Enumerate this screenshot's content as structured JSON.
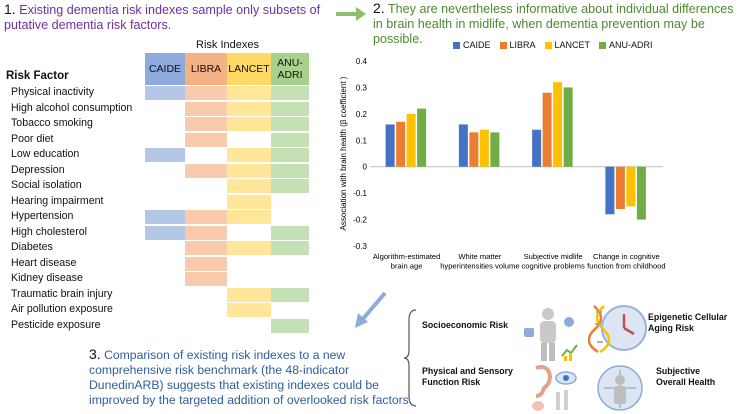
{
  "headings": {
    "h1": {
      "num": "1.",
      "text": "Existing dementia risk indexes sample only subsets of putative dementia risk factors."
    },
    "h2": {
      "num": "2.",
      "text": "They are nevertheless informative about individual differences in brain health in midlife, when dementia prevention may be possible."
    },
    "h3": {
      "num": "3.",
      "text": "Comparison of existing risk indexes to a new comprehensive risk benchmark (the 48-indicator DunedinARB) suggests that existing indexes could be improved by the targeted addition of overlooked risk factors."
    }
  },
  "table": {
    "title": "Risk Indexes",
    "factor_header": "Risk Factor",
    "columns": [
      "CAIDE",
      "LIBRA",
      "LANCET",
      "ANU-ADRI"
    ],
    "column_colors": [
      "#8faadc",
      "#f4b183",
      "#ffd966",
      "#a9d18e"
    ],
    "rows": [
      {
        "label": "Physical inactivity",
        "cells": [
          1,
          1,
          1,
          1
        ]
      },
      {
        "label": "High alcohol consumption",
        "cells": [
          0,
          1,
          1,
          1
        ]
      },
      {
        "label": "Tobacco smoking",
        "cells": [
          0,
          1,
          1,
          1
        ]
      },
      {
        "label": "Poor diet",
        "cells": [
          0,
          1,
          0,
          1
        ]
      },
      {
        "label": "Low education",
        "cells": [
          1,
          0,
          1,
          1
        ]
      },
      {
        "label": "Depression",
        "cells": [
          0,
          1,
          1,
          1
        ]
      },
      {
        "label": "Social isolation",
        "cells": [
          0,
          0,
          1,
          1
        ]
      },
      {
        "label": "Hearing impairment",
        "cells": [
          0,
          0,
          1,
          0
        ]
      },
      {
        "label": "Hypertension",
        "cells": [
          1,
          1,
          1,
          0
        ]
      },
      {
        "label": "High cholesterol",
        "cells": [
          1,
          1,
          0,
          1
        ]
      },
      {
        "label": "Diabetes",
        "cells": [
          0,
          1,
          1,
          1
        ]
      },
      {
        "label": "Heart disease",
        "cells": [
          0,
          1,
          0,
          0
        ]
      },
      {
        "label": "Kidney disease",
        "cells": [
          0,
          1,
          0,
          0
        ]
      },
      {
        "label": "Traumatic brain injury",
        "cells": [
          0,
          0,
          1,
          1
        ]
      },
      {
        "label": "Air pollution exposure",
        "cells": [
          0,
          0,
          1,
          0
        ]
      },
      {
        "label": "Pesticide exposure",
        "cells": [
          0,
          0,
          0,
          1
        ]
      }
    ]
  },
  "chart_data": {
    "type": "bar",
    "title": "",
    "ylabel": "Association with brain health (β coefficient )",
    "xlabel": "",
    "ylim": [
      -0.3,
      0.4
    ],
    "yticks": [
      "0.4",
      "0.3",
      "0.2",
      "0.1",
      "0",
      "-0.1",
      "-0.2",
      "-0.3"
    ],
    "categories": [
      [
        "Algorithm-estimated",
        "brain age"
      ],
      [
        "White matter",
        "hyperintensities volume"
      ],
      [
        "Subjective midlife",
        "cognitive problems"
      ],
      [
        "Change in cognitive",
        "function from childhood"
      ]
    ],
    "series": [
      {
        "name": "CAIDE",
        "color": "#4472c4",
        "values": [
          0.16,
          0.16,
          0.14,
          -0.18
        ]
      },
      {
        "name": "LIBRA",
        "color": "#ed7d31",
        "values": [
          0.17,
          0.13,
          0.28,
          -0.16
        ]
      },
      {
        "name": "LANCET",
        "color": "#ffc000",
        "values": [
          0.2,
          0.14,
          0.32,
          -0.15
        ]
      },
      {
        "name": "ANU-ADRI",
        "color": "#70ad47",
        "values": [
          0.22,
          0.13,
          0.3,
          -0.2
        ]
      }
    ]
  },
  "domains": {
    "socioeconomic": "Socioeconomic Risk",
    "epigenetic": "Epigenetic Cellular Aging Risk",
    "physical": "Physical and Sensory Function Risk",
    "subjective": "Subjective Overall Health"
  }
}
